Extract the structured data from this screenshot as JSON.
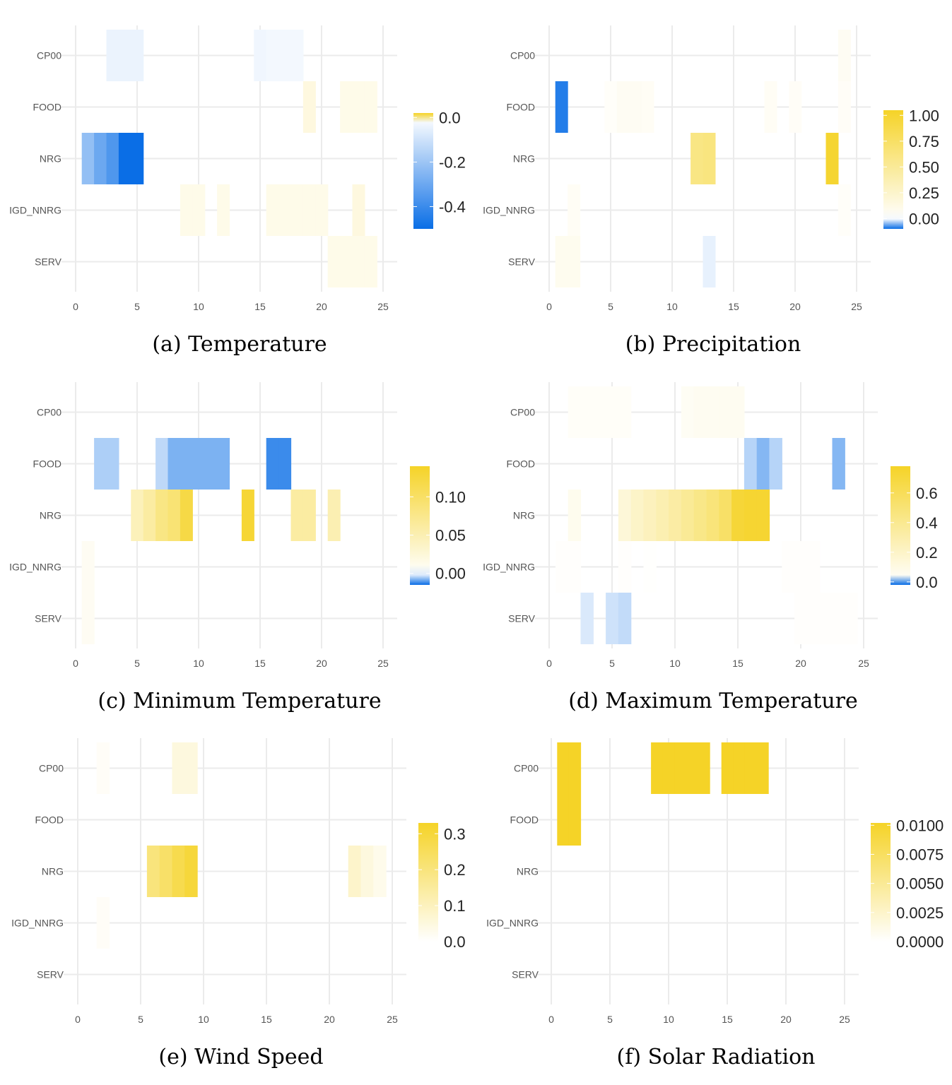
{
  "colors": {
    "positive": "#f5d327",
    "negative": "#0a6ee6",
    "zero": "#ffffff",
    "grid": "#ebebeb"
  },
  "chart_data": [
    {
      "type": "heatmap",
      "caption": "(a) Temperature",
      "categories_y": [
        "CP00",
        "FOOD",
        "NRG",
        "IGD_NNRG",
        "SERV"
      ],
      "xlim": [
        0,
        25
      ],
      "x_ticks": [
        "0",
        "5",
        "10",
        "15",
        "20",
        "25"
      ],
      "colorbar": {
        "min": -0.5,
        "max": 0.02,
        "ticks": [
          0.0,
          -0.2,
          -0.4
        ],
        "tick_labels": [
          "0.0",
          "-0.2",
          "-0.4"
        ]
      },
      "cells": [
        {
          "row": "CP00",
          "x": 3,
          "value": -0.04
        },
        {
          "row": "CP00",
          "x": 4,
          "value": -0.04
        },
        {
          "row": "CP00",
          "x": 5,
          "value": -0.04
        },
        {
          "row": "CP00",
          "x": 15,
          "value": -0.03
        },
        {
          "row": "CP00",
          "x": 16,
          "value": -0.025
        },
        {
          "row": "CP00",
          "x": 17,
          "value": -0.025
        },
        {
          "row": "CP00",
          "x": 18,
          "value": -0.025
        },
        {
          "row": "FOOD",
          "x": 19,
          "value": 0.003
        },
        {
          "row": "FOOD",
          "x": 22,
          "value": 0.002
        },
        {
          "row": "FOOD",
          "x": 23,
          "value": 0.002
        },
        {
          "row": "FOOD",
          "x": 24,
          "value": 0.002
        },
        {
          "row": "NRG",
          "x": 1,
          "value": -0.22
        },
        {
          "row": "NRG",
          "x": 2,
          "value": -0.3
        },
        {
          "row": "NRG",
          "x": 3,
          "value": -0.36
        },
        {
          "row": "NRG",
          "x": 4,
          "value": -0.5
        },
        {
          "row": "NRG",
          "x": 5,
          "value": -0.5
        },
        {
          "row": "IGD_NNRG",
          "x": 9,
          "value": 0.002
        },
        {
          "row": "IGD_NNRG",
          "x": 10,
          "value": 0.002
        },
        {
          "row": "IGD_NNRG",
          "x": 12,
          "value": 0.002
        },
        {
          "row": "IGD_NNRG",
          "x": 16,
          "value": 0.002
        },
        {
          "row": "IGD_NNRG",
          "x": 17,
          "value": 0.002
        },
        {
          "row": "IGD_NNRG",
          "x": 18,
          "value": 0.002
        },
        {
          "row": "IGD_NNRG",
          "x": 19,
          "value": 0.002
        },
        {
          "row": "IGD_NNRG",
          "x": 20,
          "value": 0.002
        },
        {
          "row": "IGD_NNRG",
          "x": 23,
          "value": 0.003
        },
        {
          "row": "SERV",
          "x": 21,
          "value": 0.002
        },
        {
          "row": "SERV",
          "x": 22,
          "value": 0.002
        },
        {
          "row": "SERV",
          "x": 23,
          "value": 0.002
        },
        {
          "row": "SERV",
          "x": 24,
          "value": 0.002
        }
      ]
    },
    {
      "type": "heatmap",
      "caption": "(b) Precipitation",
      "categories_y": [
        "CP00",
        "FOOD",
        "NRG",
        "IGD_NNRG",
        "SERV"
      ],
      "xlim": [
        0,
        25
      ],
      "x_ticks": [
        "0",
        "5",
        "10",
        "15",
        "20",
        "25"
      ],
      "colorbar": {
        "min": -0.1,
        "max": 1.05,
        "ticks": [
          1.0,
          0.75,
          0.5,
          0.25,
          0.0
        ],
        "tick_labels": [
          "1.00",
          "0.75",
          "0.50",
          "0.25",
          "0.00"
        ]
      },
      "cells": [
        {
          "row": "CP00",
          "x": 24,
          "value": 0.06
        },
        {
          "row": "FOOD",
          "x": 1,
          "value": -0.09
        },
        {
          "row": "FOOD",
          "x": 5,
          "value": 0.03
        },
        {
          "row": "FOOD",
          "x": 6,
          "value": 0.06
        },
        {
          "row": "FOOD",
          "x": 7,
          "value": 0.06
        },
        {
          "row": "FOOD",
          "x": 8,
          "value": 0.05
        },
        {
          "row": "FOOD",
          "x": 18,
          "value": 0.05
        },
        {
          "row": "FOOD",
          "x": 20,
          "value": 0.04
        },
        {
          "row": "FOOD",
          "x": 24,
          "value": 0.04
        },
        {
          "row": "NRG",
          "x": 12,
          "value": 0.6
        },
        {
          "row": "NRG",
          "x": 13,
          "value": 0.62
        },
        {
          "row": "NRG",
          "x": 23,
          "value": 1.0
        },
        {
          "row": "IGD_NNRG",
          "x": 2,
          "value": 0.05
        },
        {
          "row": "IGD_NNRG",
          "x": 24,
          "value": 0.03
        },
        {
          "row": "SERV",
          "x": 1,
          "value": 0.08
        },
        {
          "row": "SERV",
          "x": 2,
          "value": 0.08
        },
        {
          "row": "SERV",
          "x": 13,
          "value": -0.01
        }
      ]
    },
    {
      "type": "heatmap",
      "caption": "(c) Minimum Temperature",
      "categories_y": [
        "CP00",
        "FOOD",
        "NRG",
        "IGD_NNRG",
        "SERV"
      ],
      "xlim": [
        0,
        25
      ],
      "x_ticks": [
        "0",
        "5",
        "10",
        "15",
        "20",
        "25"
      ],
      "colorbar": {
        "min": -0.015,
        "max": 0.14,
        "ticks": [
          0.1,
          0.05,
          0.0
        ],
        "tick_labels": [
          "0.10",
          "0.05",
          "0.00"
        ]
      },
      "cells": [
        {
          "row": "FOOD",
          "x": 2,
          "value": -0.005
        },
        {
          "row": "FOOD",
          "x": 3,
          "value": -0.005
        },
        {
          "row": "FOOD",
          "x": 7,
          "value": -0.004
        },
        {
          "row": "FOOD",
          "x": 8,
          "value": -0.008
        },
        {
          "row": "FOOD",
          "x": 9,
          "value": -0.008
        },
        {
          "row": "FOOD",
          "x": 10,
          "value": -0.008
        },
        {
          "row": "FOOD",
          "x": 11,
          "value": -0.008
        },
        {
          "row": "FOOD",
          "x": 12,
          "value": -0.008
        },
        {
          "row": "FOOD",
          "x": 16,
          "value": -0.012
        },
        {
          "row": "FOOD",
          "x": 17,
          "value": -0.012
        },
        {
          "row": "NRG",
          "x": 5,
          "value": 0.045
        },
        {
          "row": "NRG",
          "x": 6,
          "value": 0.06
        },
        {
          "row": "NRG",
          "x": 7,
          "value": 0.08
        },
        {
          "row": "NRG",
          "x": 8,
          "value": 0.09
        },
        {
          "row": "NRG",
          "x": 9,
          "value": 0.12
        },
        {
          "row": "NRG",
          "x": 14,
          "value": 0.13
        },
        {
          "row": "NRG",
          "x": 18,
          "value": 0.06
        },
        {
          "row": "NRG",
          "x": 19,
          "value": 0.06
        },
        {
          "row": "NRG",
          "x": 21,
          "value": 0.05
        },
        {
          "row": "IGD_NNRG",
          "x": 1,
          "value": 0.008
        },
        {
          "row": "SERV",
          "x": 1,
          "value": 0.008
        }
      ]
    },
    {
      "type": "heatmap",
      "caption": "(d) Maximum Temperature",
      "categories_y": [
        "CP00",
        "FOOD",
        "NRG",
        "IGD_NNRG",
        "SERV"
      ],
      "xlim": [
        0,
        25
      ],
      "x_ticks": [
        "0",
        "5",
        "10",
        "15",
        "20",
        "25"
      ],
      "colorbar": {
        "min": -0.02,
        "max": 0.78,
        "ticks": [
          0.6,
          0.4,
          0.2,
          0.0
        ],
        "tick_labels": [
          "0.6",
          "0.4",
          "0.2",
          "0.0"
        ]
      },
      "cells": [
        {
          "row": "CP00",
          "x": 2,
          "value": 0.025
        },
        {
          "row": "CP00",
          "x": 3,
          "value": 0.025
        },
        {
          "row": "CP00",
          "x": 4,
          "value": 0.025
        },
        {
          "row": "CP00",
          "x": 5,
          "value": 0.025
        },
        {
          "row": "CP00",
          "x": 6,
          "value": 0.025
        },
        {
          "row": "CP00",
          "x": 11,
          "value": 0.04
        },
        {
          "row": "CP00",
          "x": 12,
          "value": 0.05
        },
        {
          "row": "CP00",
          "x": 13,
          "value": 0.05
        },
        {
          "row": "CP00",
          "x": 14,
          "value": 0.05
        },
        {
          "row": "CP00",
          "x": 15,
          "value": 0.05
        },
        {
          "row": "FOOD",
          "x": 16,
          "value": -0.006
        },
        {
          "row": "FOOD",
          "x": 17,
          "value": -0.01
        },
        {
          "row": "FOOD",
          "x": 18,
          "value": -0.006
        },
        {
          "row": "FOOD",
          "x": 23,
          "value": -0.01
        },
        {
          "row": "NRG",
          "x": 2,
          "value": 0.06
        },
        {
          "row": "NRG",
          "x": 6,
          "value": 0.14
        },
        {
          "row": "NRG",
          "x": 7,
          "value": 0.2
        },
        {
          "row": "NRG",
          "x": 8,
          "value": 0.24
        },
        {
          "row": "NRG",
          "x": 9,
          "value": 0.28
        },
        {
          "row": "NRG",
          "x": 10,
          "value": 0.33
        },
        {
          "row": "NRG",
          "x": 11,
          "value": 0.38
        },
        {
          "row": "NRG",
          "x": 12,
          "value": 0.43
        },
        {
          "row": "NRG",
          "x": 13,
          "value": 0.48
        },
        {
          "row": "NRG",
          "x": 14,
          "value": 0.55
        },
        {
          "row": "NRG",
          "x": 15,
          "value": 0.72
        },
        {
          "row": "NRG",
          "x": 16,
          "value": 0.74
        },
        {
          "row": "NRG",
          "x": 17,
          "value": 0.74
        },
        {
          "row": "IGD_NNRG",
          "x": 1,
          "value": 0.01
        },
        {
          "row": "IGD_NNRG",
          "x": 2,
          "value": 0.012
        },
        {
          "row": "IGD_NNRG",
          "x": 6,
          "value": 0.01
        },
        {
          "row": "IGD_NNRG",
          "x": 8,
          "value": 0.008
        },
        {
          "row": "IGD_NNRG",
          "x": 19,
          "value": 0.01
        },
        {
          "row": "IGD_NNRG",
          "x": 20,
          "value": 0.01
        },
        {
          "row": "IGD_NNRG",
          "x": 21,
          "value": 0.01
        },
        {
          "row": "SERV",
          "x": 3,
          "value": -0.003
        },
        {
          "row": "SERV",
          "x": 5,
          "value": -0.004
        },
        {
          "row": "SERV",
          "x": 6,
          "value": -0.005
        },
        {
          "row": "SERV",
          "x": 20,
          "value": 0.01
        },
        {
          "row": "SERV",
          "x": 21,
          "value": 0.01
        },
        {
          "row": "SERV",
          "x": 22,
          "value": 0.01
        },
        {
          "row": "SERV",
          "x": 23,
          "value": 0.01
        },
        {
          "row": "SERV",
          "x": 24,
          "value": 0.01
        }
      ]
    },
    {
      "type": "heatmap",
      "caption": "(e) Wind Speed",
      "categories_y": [
        "CP00",
        "FOOD",
        "NRG",
        "IGD_NNRG",
        "SERV"
      ],
      "xlim": [
        0,
        25
      ],
      "x_ticks": [
        "0",
        "5",
        "10",
        "15",
        "20",
        "25"
      ],
      "colorbar": {
        "min": 0.0,
        "max": 0.33,
        "ticks": [
          0.3,
          0.2,
          0.1,
          0.0
        ],
        "tick_labels": [
          "0.3",
          "0.2",
          "0.1",
          "0.0"
        ]
      },
      "cells": [
        {
          "row": "CP00",
          "x": 2,
          "value": 0.012
        },
        {
          "row": "CP00",
          "x": 8,
          "value": 0.05
        },
        {
          "row": "CP00",
          "x": 9,
          "value": 0.05
        },
        {
          "row": "NRG",
          "x": 6,
          "value": 0.2
        },
        {
          "row": "NRG",
          "x": 7,
          "value": 0.23
        },
        {
          "row": "NRG",
          "x": 8,
          "value": 0.27
        },
        {
          "row": "NRG",
          "x": 9,
          "value": 0.3
        },
        {
          "row": "NRG",
          "x": 22,
          "value": 0.08
        },
        {
          "row": "NRG",
          "x": 23,
          "value": 0.05
        },
        {
          "row": "NRG",
          "x": 24,
          "value": 0.03
        },
        {
          "row": "IGD_NNRG",
          "x": 2,
          "value": 0.012
        }
      ]
    },
    {
      "type": "heatmap",
      "caption": "(f) Solar Radiation",
      "categories_y": [
        "CP00",
        "FOOD",
        "NRG",
        "IGD_NNRG",
        "SERV"
      ],
      "xlim": [
        0,
        25
      ],
      "x_ticks": [
        "0",
        "5",
        "10",
        "15",
        "20",
        "25"
      ],
      "colorbar": {
        "min": 0.0,
        "max": 0.0102,
        "ticks": [
          0.01,
          0.0075,
          0.005,
          0.0025,
          0.0
        ],
        "tick_labels": [
          "0.0100",
          "0.0075",
          "0.0050",
          "0.0025",
          "0.0000"
        ]
      },
      "cells": [
        {
          "row": "CP00",
          "x": 1,
          "value": 0.0102
        },
        {
          "row": "CP00",
          "x": 2,
          "value": 0.0102
        },
        {
          "row": "FOOD",
          "x": 1,
          "value": 0.0102
        },
        {
          "row": "FOOD",
          "x": 2,
          "value": 0.0102
        },
        {
          "row": "CP00",
          "x": 9,
          "value": 0.0102
        },
        {
          "row": "CP00",
          "x": 10,
          "value": 0.0102
        },
        {
          "row": "CP00",
          "x": 11,
          "value": 0.0102
        },
        {
          "row": "CP00",
          "x": 12,
          "value": 0.0102
        },
        {
          "row": "CP00",
          "x": 13,
          "value": 0.0102
        },
        {
          "row": "CP00",
          "x": 15,
          "value": 0.0102
        },
        {
          "row": "CP00",
          "x": 16,
          "value": 0.0102
        },
        {
          "row": "CP00",
          "x": 17,
          "value": 0.0102
        },
        {
          "row": "CP00",
          "x": 18,
          "value": 0.0102
        }
      ]
    }
  ]
}
